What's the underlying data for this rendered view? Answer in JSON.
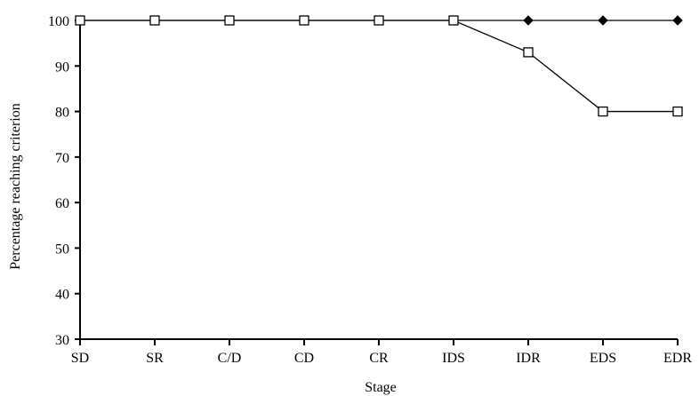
{
  "chart_data": {
    "type": "line",
    "title": "",
    "xlabel": "Stage",
    "ylabel": "Percentage reaching criterion",
    "categories": [
      "SD",
      "SR",
      "C/D",
      "CD",
      "CR",
      "IDS",
      "IDR",
      "EDS",
      "EDR"
    ],
    "ylim": [
      30,
      100
    ],
    "yticks": [
      30,
      40,
      50,
      60,
      70,
      80,
      90,
      100
    ],
    "grid": false,
    "legend": "none",
    "series": [
      {
        "marker": "filled-diamond",
        "color": "#000000",
        "values": [
          100,
          100,
          100,
          100,
          100,
          100,
          100,
          100,
          100
        ]
      },
      {
        "marker": "open-square",
        "color": "#000000",
        "values": [
          100,
          100,
          100,
          100,
          100,
          100,
          93,
          80,
          80
        ]
      }
    ]
  }
}
